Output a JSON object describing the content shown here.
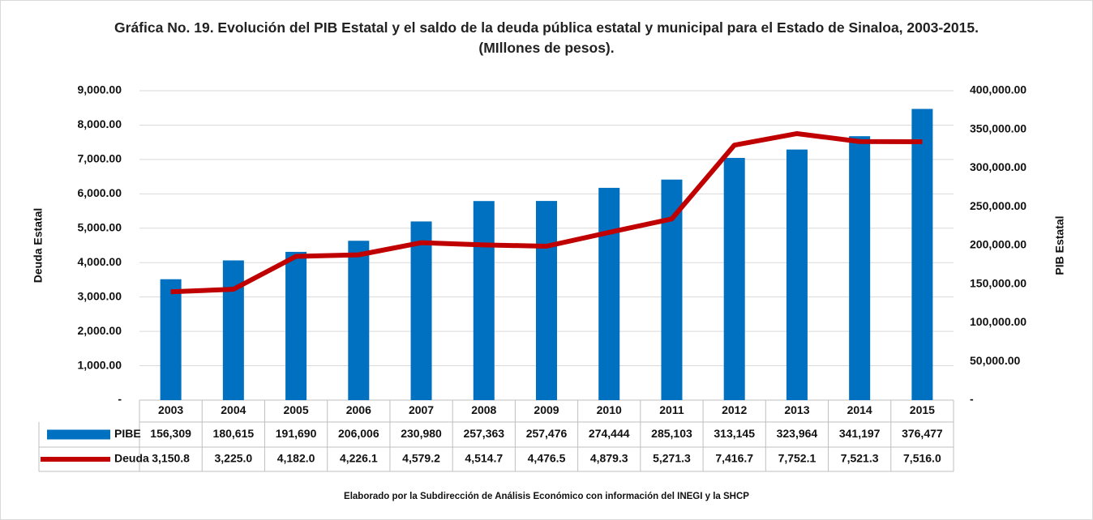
{
  "chart_data": {
    "type": "combo",
    "title": "Gráfica No. 19. Evolución del PIB Estatal y el saldo de la deuda pública estatal y municipal para el Estado de Sinaloa, 2003-2015. (MIllones de pesos).",
    "y_label": "Deuda Estatal",
    "y2_label": "PIB Estatal",
    "source": "Elaborado por la Subdirección de Análisis Económico con información del INEGI y la SHCP",
    "categories": [
      "2003",
      "2004",
      "2005",
      "2006",
      "2007",
      "2008",
      "2009",
      "2010",
      "2011",
      "2012",
      "2013",
      "2014",
      "2015"
    ],
    "series": [
      {
        "name": "PIBE",
        "type": "bar",
        "axis": "y2",
        "color": "#0070c0",
        "values": [
          156309,
          180615,
          191690,
          206006,
          230980,
          257363,
          257476,
          274444,
          285103,
          313145,
          323964,
          341197,
          376477
        ],
        "value_labels": [
          "156,309",
          "180,615",
          "191,690",
          "206,006",
          "230,980",
          "257,363",
          "257,476",
          "274,444",
          "285,103",
          "313,145",
          "323,964",
          "341,197",
          "376,477"
        ]
      },
      {
        "name": "Deuda",
        "type": "line",
        "axis": "y",
        "color": "#c00000",
        "values": [
          3150.8,
          3225.0,
          4182.0,
          4226.1,
          4579.2,
          4514.7,
          4476.5,
          4879.3,
          5271.3,
          7416.7,
          7752.1,
          7521.3,
          7516.0
        ],
        "value_labels": [
          "3,150.8",
          "3,225.0",
          "4,182.0",
          "4,226.1",
          "4,579.2",
          "4,514.7",
          "4,476.5",
          "4,879.3",
          "5,271.3",
          "7,416.7",
          "7,752.1",
          "7,521.3",
          "7,516.0"
        ]
      }
    ],
    "ylim": [
      0,
      9000
    ],
    "yticks": [
      {
        "value": 0,
        "label": "-"
      },
      {
        "value": 1000,
        "label": "1,000.00"
      },
      {
        "value": 2000,
        "label": "2,000.00"
      },
      {
        "value": 3000,
        "label": "3,000.00"
      },
      {
        "value": 4000,
        "label": "4,000.00"
      },
      {
        "value": 5000,
        "label": "5,000.00"
      },
      {
        "value": 6000,
        "label": "6,000.00"
      },
      {
        "value": 7000,
        "label": "7,000.00"
      },
      {
        "value": 8000,
        "label": "8,000.00"
      },
      {
        "value": 9000,
        "label": "9,000.00"
      }
    ],
    "y2lim": [
      0,
      400000
    ],
    "y2ticks": [
      {
        "value": 0,
        "label": "-"
      },
      {
        "value": 50000,
        "label": "50,000.00"
      },
      {
        "value": 100000,
        "label": "100,000.00"
      },
      {
        "value": 150000,
        "label": "150,000.00"
      },
      {
        "value": 200000,
        "label": "200,000.00"
      },
      {
        "value": 250000,
        "label": "250,000.00"
      },
      {
        "value": 300000,
        "label": "300,000.00"
      },
      {
        "value": 350000,
        "label": "350,000.00"
      },
      {
        "value": 400000,
        "label": "400,000.00"
      }
    ],
    "grid": true
  }
}
